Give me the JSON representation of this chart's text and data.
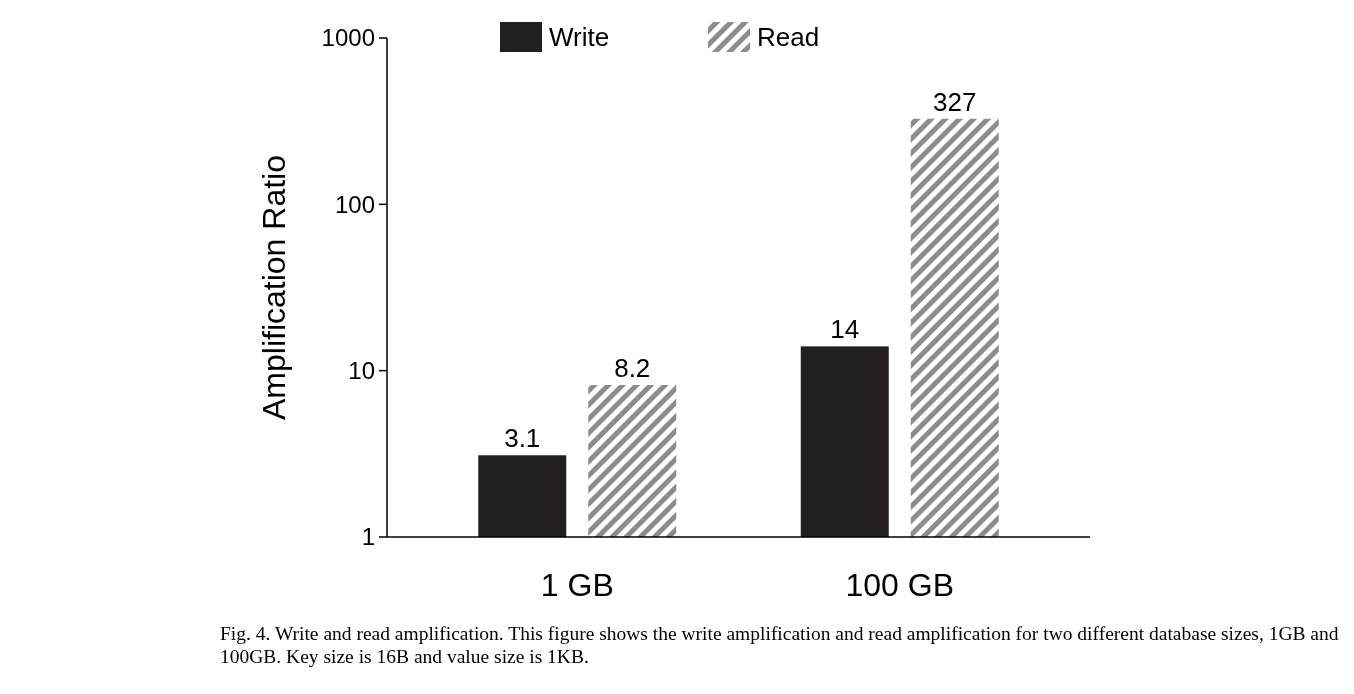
{
  "chart_data": {
    "type": "bar",
    "ylabel": "Amplification Ratio",
    "categories": [
      "1 GB",
      "100 GB"
    ],
    "series": [
      {
        "name": "Write",
        "color": "#231f20",
        "values": [
          3.1,
          14
        ]
      },
      {
        "name": "Read",
        "color": "#8c8c8c",
        "values": [
          8.2,
          327
        ]
      }
    ],
    "log": true,
    "ylim": [
      1,
      1000
    ],
    "yticks": [
      1,
      10,
      100,
      1000
    ],
    "data_labels": true,
    "legend": "top",
    "grid": false,
    "annotations": [
      "Fig. 4.   Write and read amplification. This figure shows the write amplification and read amplification for two different database sizes, 1GB and 100GB. Key size is 16B and value size is 1KB."
    ]
  }
}
